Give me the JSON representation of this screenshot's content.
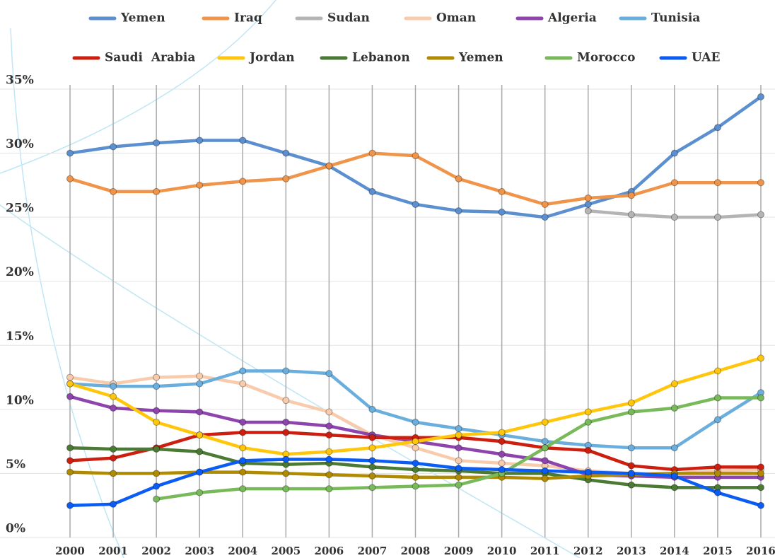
{
  "chart_data": {
    "type": "line",
    "categories": [
      "2000",
      "2001",
      "2002",
      "2003",
      "2004",
      "2005",
      "2006",
      "2007",
      "2008",
      "2009",
      "2010",
      "2011",
      "2012",
      "2013",
      "2014",
      "2015",
      "2016"
    ],
    "ylim": [
      0,
      35
    ],
    "yticks": [
      {
        "value": 0,
        "label": "0%"
      },
      {
        "value": 5,
        "label": "5%"
      },
      {
        "value": 10,
        "label": "10%"
      },
      {
        "value": 15,
        "label": "15%"
      },
      {
        "value": 20,
        "label": "20%"
      },
      {
        "value": 25,
        "label": "25%"
      },
      {
        "value": 30,
        "label": "30%"
      },
      {
        "value": 35,
        "label": "35%"
      }
    ],
    "grid": true,
    "series": [
      {
        "name": "Yemen",
        "color": "#5b8fd0",
        "values": [
          30,
          30.5,
          30.8,
          31,
          31,
          30,
          29,
          27,
          26,
          25.5,
          25.4,
          25,
          26,
          27,
          30,
          32,
          34.4
        ]
      },
      {
        "name": "Iraq",
        "color": "#f0944a",
        "values": [
          28,
          27,
          27,
          27.5,
          27.8,
          28,
          29,
          30,
          29.8,
          28,
          27,
          26,
          26.5,
          26.7,
          27.7,
          27.7,
          27.7
        ]
      },
      {
        "name": "Sudan",
        "color": "#b4b4b4",
        "values": [
          null,
          null,
          null,
          null,
          null,
          null,
          null,
          null,
          null,
          null,
          null,
          null,
          25.5,
          25.2,
          25,
          25,
          25.2
        ]
      },
      {
        "name": "Oman",
        "color": "#f8cbad",
        "values": [
          12.5,
          12,
          12.5,
          12.6,
          12,
          10.7,
          9.8,
          8,
          7,
          6,
          5.8,
          5.6,
          5.2,
          5,
          5,
          5.2,
          5.3
        ]
      },
      {
        "name": "Algeria",
        "color": "#8e44ad",
        "values": [
          11,
          10.1,
          9.9,
          9.8,
          9,
          9,
          8.7,
          8,
          7.5,
          7,
          6.5,
          6,
          4.9,
          4.8,
          4.7,
          4.7,
          4.7
        ]
      },
      {
        "name": "Tunisia",
        "color": "#6aaede",
        "values": [
          12,
          11.8,
          11.8,
          12,
          13,
          13,
          12.8,
          10,
          9,
          8.5,
          8,
          7.5,
          7.2,
          7,
          7,
          9.2,
          11.3
        ]
      },
      {
        "name": "Saudi  Arabia",
        "color": "#cc1f0f",
        "values": [
          6,
          6.2,
          7,
          8,
          8.2,
          8.2,
          8,
          7.8,
          7.8,
          7.8,
          7.5,
          7,
          6.8,
          5.6,
          5.3,
          5.5,
          5.5
        ]
      },
      {
        "name": "Jordan",
        "color": "#ffc60b",
        "values": [
          12,
          11,
          9,
          8,
          7,
          6.5,
          6.7,
          7,
          7.5,
          8,
          8.2,
          9,
          9.8,
          10.5,
          12,
          13,
          14
        ]
      },
      {
        "name": "Lebanon",
        "color": "#4a7a33",
        "values": [
          7,
          6.9,
          6.9,
          6.7,
          5.8,
          5.7,
          5.8,
          5.5,
          5.3,
          5.2,
          5,
          5,
          4.5,
          4.1,
          3.9,
          3.9,
          3.9
        ]
      },
      {
        "name": "Yemen",
        "color": "#b08a00",
        "values": [
          5.1,
          5,
          5,
          5.1,
          5.1,
          5,
          4.9,
          4.8,
          4.7,
          4.7,
          4.7,
          4.6,
          4.8,
          4.9,
          5,
          5,
          5
        ]
      },
      {
        "name": "Morocco",
        "color": "#78b95a",
        "values": [
          null,
          null,
          3,
          3.5,
          3.8,
          3.8,
          3.8,
          3.9,
          4,
          4.1,
          5,
          7,
          9,
          9.8,
          10.1,
          10.9,
          10.9
        ]
      },
      {
        "name": "UAE",
        "color": "#0a5cf5",
        "values": [
          2.5,
          2.6,
          4,
          5.1,
          6,
          6.1,
          6.1,
          6,
          5.8,
          5.4,
          5.3,
          5.2,
          5.1,
          5,
          4.8,
          3.5,
          2.5
        ]
      }
    ]
  }
}
